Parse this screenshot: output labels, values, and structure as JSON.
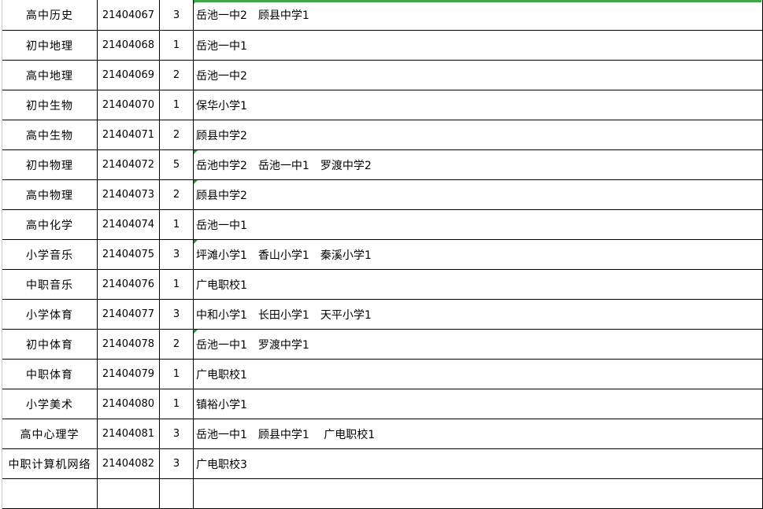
{
  "rows": [
    {
      "subject": "高中历史",
      "code": "21404067",
      "count": "3",
      "schools": "岳池一中2　顾县中学1",
      "flag": true
    },
    {
      "subject": "初中地理",
      "code": "21404068",
      "count": "1",
      "schools": "岳池一中1",
      "flag": false
    },
    {
      "subject": "高中地理",
      "code": "21404069",
      "count": "2",
      "schools": "岳池一中2",
      "flag": false
    },
    {
      "subject": "初中生物",
      "code": "21404070",
      "count": "1",
      "schools": "保华小学1",
      "flag": false
    },
    {
      "subject": "高中生物",
      "code": "21404071",
      "count": "2",
      "schools": "顾县中学2",
      "flag": false
    },
    {
      "subject": "初中物理",
      "code": "21404072",
      "count": "5",
      "schools": "岳池中学2　岳池一中1　罗渡中学2",
      "flag": true
    },
    {
      "subject": "高中物理",
      "code": "21404073",
      "count": "2",
      "schools": "顾县中学2",
      "flag": true
    },
    {
      "subject": "高中化学",
      "code": "21404074",
      "count": "1",
      "schools": "岳池一中1",
      "flag": false
    },
    {
      "subject": "小学音乐",
      "code": "21404075",
      "count": "3",
      "schools": "坪滩小学1　香山小学1　秦溪小学1",
      "flag": true
    },
    {
      "subject": "中职音乐",
      "code": "21404076",
      "count": "1",
      "schools": "广电职校1",
      "flag": false
    },
    {
      "subject": "小学体育",
      "code": "21404077",
      "count": "3",
      "schools": "中和小学1　长田小学1　天平小学1",
      "flag": false
    },
    {
      "subject": "初中体育",
      "code": "21404078",
      "count": "2",
      "schools": "岳池一中1　罗渡中学1",
      "flag": true
    },
    {
      "subject": "中职体育",
      "code": "21404079",
      "count": "1",
      "schools": "广电职校1",
      "flag": false
    },
    {
      "subject": "小学美术",
      "code": "21404080",
      "count": "1",
      "schools": "镇裕小学1",
      "flag": false
    },
    {
      "subject": "高中心理学",
      "code": "21404081",
      "count": "3",
      "schools": "岳池一中1　顾县中学1　 广电职校1",
      "flag": false
    },
    {
      "subject": "中职计算机网络",
      "code": "21404082",
      "count": "3",
      "schools": "广电职校3",
      "flag": false
    },
    {
      "subject": "",
      "code": "",
      "count": "",
      "schools": "",
      "flag": false
    }
  ],
  "colors": {
    "selection": "#3fa64a",
    "error_flag": "#1f9a36"
  }
}
